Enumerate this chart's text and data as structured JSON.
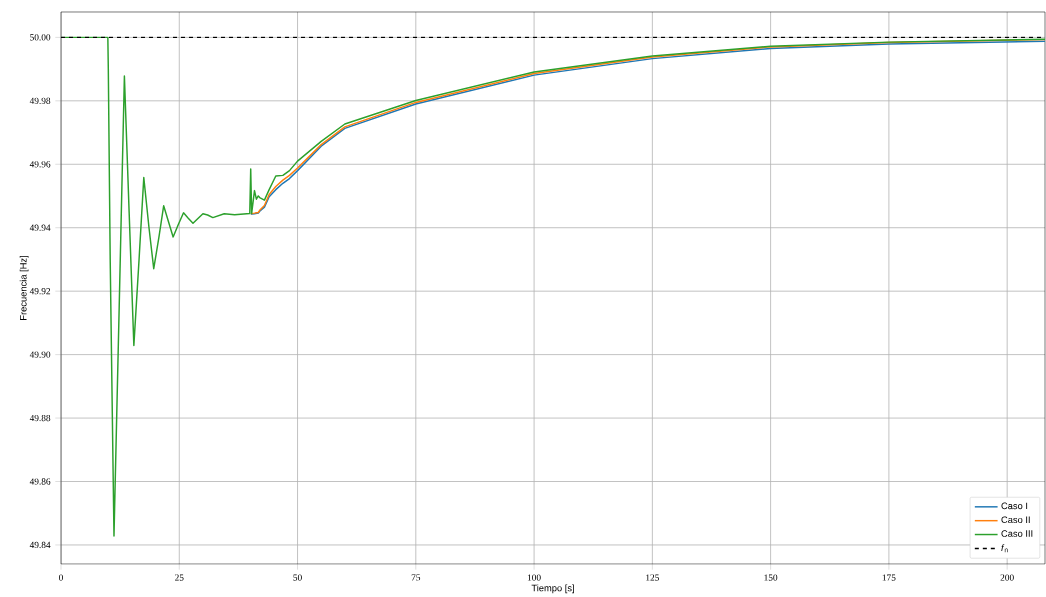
{
  "chart_data": {
    "type": "line",
    "xlabel": "Tiempo [s]",
    "ylabel": "Frecuencia [Hz]",
    "x": [
      0,
      9.9,
      10,
      10.4,
      11.2,
      12.3,
      13.4,
      14.4,
      15.4,
      16.5,
      17.5,
      18.6,
      19.6,
      20.7,
      21.7,
      22.7,
      23.7,
      24.8,
      25.9,
      26.9,
      27.9,
      29,
      30,
      31,
      32.1,
      34.5,
      36.7,
      39.9,
      40.1,
      40.3,
      40.9,
      41.3,
      41.7,
      42,
      43,
      44,
      45.4,
      46.9,
      48.3,
      50,
      55,
      60,
      75,
      100,
      125,
      150,
      175,
      208
    ],
    "series": [
      {
        "name": "Caso I",
        "color": "#1f77b4",
        "values": [
          null,
          null,
          null,
          null,
          null,
          null,
          null,
          null,
          null,
          null,
          null,
          null,
          null,
          null,
          null,
          null,
          null,
          null,
          null,
          null,
          null,
          null,
          null,
          null,
          null,
          null,
          null,
          null,
          49.9443,
          49.9443,
          49.9444,
          49.9445,
          49.9446,
          49.9452,
          49.9465,
          49.9498,
          49.952,
          49.954,
          49.9555,
          49.958,
          49.9657,
          49.9713,
          49.979,
          49.9881,
          49.9933,
          49.9965,
          49.9979,
          49.9988
        ]
      },
      {
        "name": "Caso II",
        "color": "#ff7f0e",
        "values": [
          null,
          null,
          null,
          null,
          null,
          null,
          null,
          null,
          null,
          null,
          null,
          null,
          null,
          null,
          null,
          null,
          null,
          null,
          null,
          null,
          null,
          null,
          null,
          null,
          null,
          null,
          null,
          null,
          49.9445,
          49.9445,
          49.9446,
          49.9447,
          49.9448,
          49.9455,
          49.947,
          49.9505,
          49.953,
          49.955,
          49.9565,
          49.9588,
          49.9662,
          49.9718,
          49.9795,
          49.9886,
          49.9938,
          49.997,
          49.9984,
          49.9993
        ]
      },
      {
        "name": "Caso III",
        "color": "#2ca02c",
        "values": [
          50.0,
          50.0,
          49.99,
          49.93,
          49.8428,
          49.915,
          49.9878,
          49.945,
          49.9029,
          49.93,
          49.9558,
          49.94,
          49.9271,
          49.937,
          49.9469,
          49.942,
          49.9371,
          49.941,
          49.9447,
          49.943,
          49.9414,
          49.943,
          49.9444,
          49.944,
          49.9432,
          49.9444,
          49.9441,
          49.9445,
          49.9585,
          49.9445,
          49.9517,
          49.949,
          49.95,
          49.9495,
          49.9487,
          49.952,
          49.9563,
          49.9565,
          49.958,
          49.961,
          49.9672,
          49.9727,
          49.9801,
          49.9891,
          49.9941,
          49.9972,
          49.9985,
          49.9994
        ]
      }
    ],
    "ref_lines": [
      {
        "axis": "y",
        "value": 50.0,
        "label": "*f*$_{n}$",
        "color": "#000000",
        "line_style": "dashed"
      }
    ],
    "xlim": [
      0,
      208
    ],
    "ylim": [
      49.834,
      50.008
    ],
    "xticks": [
      0,
      25,
      50,
      75,
      100,
      125,
      150,
      175,
      200
    ],
    "yticks": [
      {
        "value": 49.84,
        "label": "49.84"
      },
      {
        "value": 49.86,
        "label": "49.86"
      },
      {
        "value": 49.88,
        "label": "49.88"
      },
      {
        "value": 49.9,
        "label": "49.90"
      },
      {
        "value": 49.92,
        "label": "49.92"
      },
      {
        "value": 49.94,
        "label": "49.94"
      },
      {
        "value": 49.96,
        "label": "49.96"
      },
      {
        "value": 49.98,
        "label": "49.98"
      },
      {
        "value": 50.0,
        "label": "50.00"
      }
    ],
    "grid": true,
    "legend": "bottom right",
    "marker": "none",
    "line_style": "solid"
  }
}
